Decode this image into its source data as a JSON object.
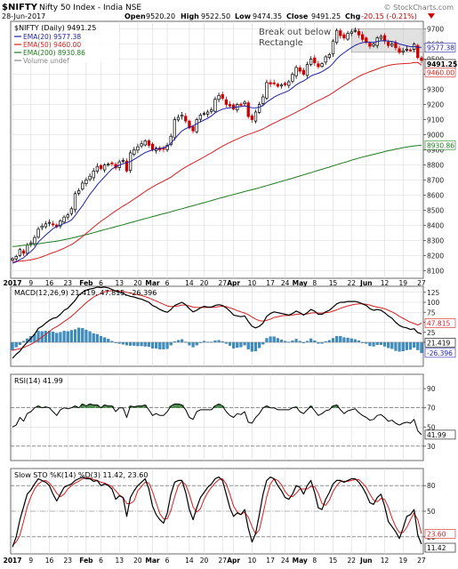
{
  "header": {
    "symbol": "$NIFTY",
    "name": "Nifty 50 Index - India  NSE",
    "date": "28-Jun-2017",
    "open_label": "Open",
    "open": "9520.20",
    "high_label": "High",
    "high": "9522.50",
    "low_label": "Low",
    "low": "9474.35",
    "close_label": "Close",
    "close": "9491.25",
    "chg_label": "Chg",
    "chg": "-20.15 (-0.21%)",
    "watermark": "© StockCharts.com"
  },
  "colors": {
    "price_up": "#000000",
    "price_down": "#cc0000",
    "ema20": "#1f1fa6",
    "ema50": "#d62020",
    "ema200": "#1f7a1f",
    "macd": "#000000",
    "signal": "#d62020",
    "histogram": "#3a8fc5",
    "rsi": "#000000",
    "rsi_fill": "#4a8a4a",
    "stoch_k": "#000000",
    "stoch_d": "#d62020",
    "grid": "#d9d9d9",
    "box": "#b5b5b5"
  },
  "chart_data": [
    {
      "type": "candlestick",
      "panel": "price",
      "title": "$NIFTY (Daily) 9491.25",
      "legend": [
        {
          "name": "EMA(20) 9577.38",
          "color": "#1f1fa6"
        },
        {
          "name": "EMA(50) 9460.00",
          "color": "#d62020"
        },
        {
          "name": "EMA(200) 8930.86",
          "color": "#1f7a1f"
        },
        {
          "name": "Volume undef",
          "color": "#888888"
        }
      ],
      "ylim": [
        8050,
        9750
      ],
      "yticks": [
        8100,
        8200,
        8300,
        8400,
        8500,
        8600,
        8700,
        8800,
        8900,
        9000,
        9100,
        9200,
        9300,
        9400,
        9500,
        9600,
        9700
      ],
      "grid": true,
      "value_tags": [
        {
          "text": "9577.38",
          "value": 9577.38,
          "style": "blue"
        },
        {
          "text": "9491.25",
          "value": 9491.25,
          "style": "bold"
        },
        {
          "text": "9460.00",
          "value": 9460.0,
          "style": "red"
        },
        {
          "text": "8930.86",
          "value": 8930.86,
          "style": "green"
        }
      ],
      "annotation": {
        "text_line1": "Break out below",
        "text_line2": "Rectangle"
      },
      "rectangle": {
        "y_low": 9545,
        "y_high": 9700,
        "date_start": "2017-06-02",
        "date_end": "2017-06-28"
      },
      "x_ticks": [
        "2017",
        "9",
        "16",
        "23",
        "Feb",
        "6",
        "13",
        "20",
        "Mar",
        "6",
        "14",
        "20",
        "27",
        "Apr",
        "10",
        "17",
        "24",
        "May",
        "8",
        "15",
        "22",
        "Jun",
        "12",
        "19",
        "27"
      ],
      "close": [
        8180,
        8195,
        8240,
        8215,
        8270,
        8285,
        8320,
        8375,
        8395,
        8410,
        8420,
        8405,
        8390,
        8430,
        8455,
        8470,
        8510,
        8610,
        8630,
        8680,
        8700,
        8725,
        8760,
        8790,
        8775,
        8800,
        8805,
        8810,
        8780,
        8820,
        8830,
        8760,
        8880,
        8900,
        8920,
        8940,
        8960,
        8930,
        8900,
        8910,
        8900,
        8905,
        8930,
        8990,
        9100,
        9115,
        9130,
        9090,
        9045,
        9025,
        9100,
        9130,
        9140,
        9150,
        9165,
        9235,
        9260,
        9240,
        9200,
        9190,
        9170,
        9200,
        9195,
        9215,
        9120,
        9100,
        9150,
        9200,
        9250,
        9345,
        9335,
        9340,
        9320,
        9330,
        9330,
        9350,
        9400,
        9445,
        9420,
        9400,
        9465,
        9500,
        9475,
        9450,
        9470,
        9515,
        9530,
        9620,
        9690,
        9655,
        9640,
        9670,
        9680,
        9690,
        9660,
        9630,
        9610,
        9585,
        9600,
        9640,
        9650,
        9620,
        9590,
        9600,
        9575,
        9545,
        9555,
        9565,
        9560,
        9600,
        9510,
        9491.25
      ],
      "ema20": [
        8150,
        8158,
        8174,
        8186,
        8208,
        8227,
        8252,
        8290,
        8313,
        8336,
        8357,
        8378,
        8393,
        8402,
        8413,
        8422,
        8436,
        8465,
        8499,
        8530,
        8568,
        8605,
        8636,
        8669,
        8696,
        8721,
        8748,
        8773,
        8788,
        8798,
        8808,
        8816,
        8822,
        8837,
        8851,
        8867,
        8881,
        8891,
        8899,
        8905,
        8909,
        8914,
        8923,
        8944,
        8972,
        9000,
        9025,
        9040,
        9050,
        9058,
        9072,
        9085,
        9097,
        9108,
        9125,
        9144,
        9158,
        9169,
        9175,
        9178,
        9181,
        9184,
        9186,
        9191,
        9184,
        9178,
        9177,
        9182,
        9194,
        9215,
        9232,
        9248,
        9261,
        9272,
        9281,
        9292,
        9310,
        9330,
        9345,
        9356,
        9371,
        9388,
        9399,
        9406,
        9417,
        9432,
        9448,
        9472,
        9501,
        9524,
        9542,
        9560,
        9576,
        9591,
        9602,
        9609,
        9614,
        9612,
        9611,
        9616,
        9621,
        9622,
        9619,
        9617,
        9611,
        9600,
        9594,
        9588,
        9582,
        9584,
        9578,
        9577.38
      ],
      "ema50": [
        8160,
        8161,
        8163,
        8165,
        8168,
        8172,
        8177,
        8184,
        8192,
        8201,
        8211,
        8220,
        8228,
        8238,
        8249,
        8261,
        8273,
        8289,
        8307,
        8326,
        8347,
        8367,
        8388,
        8408,
        8427,
        8444,
        8461,
        8479,
        8496,
        8512,
        8528,
        8541,
        8557,
        8574,
        8590,
        8607,
        8624,
        8640,
        8654,
        8668,
        8681,
        8693,
        8706,
        8719,
        8737,
        8754,
        8771,
        8786,
        8800,
        8813,
        8826,
        8839,
        8853,
        8867,
        8880,
        8895,
        8910,
        8924,
        8937,
        8949,
        8960,
        8971,
        8982,
        8993,
        9002,
        9010,
        9019,
        9028,
        9038,
        9052,
        9065,
        9077,
        9089,
        9101,
        9112,
        9124,
        9136,
        9149,
        9161,
        9173,
        9187,
        9201,
        9214,
        9226,
        9237,
        9250,
        9263,
        9278,
        9295,
        9311,
        9326,
        9342,
        9357,
        9372,
        9385,
        9397,
        9407,
        9417,
        9426,
        9435,
        9444,
        9452,
        9458,
        9463,
        9466,
        9468,
        9470,
        9471,
        9473,
        9477,
        9478,
        9460.0
      ],
      "ema200": [
        8260,
        8262,
        8265,
        8268,
        8270,
        8273,
        8276,
        8279,
        8282,
        8286,
        8289,
        8292,
        8296,
        8300,
        8305,
        8310,
        8315,
        8321,
        8327,
        8333,
        8339,
        8345,
        8352,
        8358,
        8365,
        8372,
        8378,
        8385,
        8391,
        8398,
        8404,
        8411,
        8418,
        8424,
        8431,
        8438,
        8445,
        8451,
        8458,
        8464,
        8471,
        8477,
        8483,
        8490,
        8497,
        8504,
        8510,
        8517,
        8524,
        8530,
        8537,
        8544,
        8550,
        8557,
        8564,
        8571,
        8578,
        8585,
        8591,
        8598,
        8604,
        8611,
        8617,
        8624,
        8630,
        8636,
        8642,
        8649,
        8656,
        8663,
        8670,
        8677,
        8684,
        8691,
        8698,
        8705,
        8712,
        8720,
        8727,
        8734,
        8742,
        8749,
        8757,
        8764,
        8771,
        8779,
        8786,
        8794,
        8801,
        8809,
        8816,
        8823,
        8831,
        8838,
        8845,
        8852,
        8858,
        8864,
        8870,
        8876,
        8882,
        8888,
        8894,
        8899,
        8904,
        8909,
        8914,
        8918,
        8922,
        8926,
        8928,
        8930.86
      ]
    },
    {
      "type": "line+bar",
      "panel": "macd",
      "title": "MACD(12,26,9) 21.419, 47.815, -26.396",
      "ylim": [
        -60,
        140
      ],
      "yticks": [
        0,
        25,
        50,
        75,
        100,
        125
      ],
      "value_tags": [
        {
          "text": "47.815",
          "value": 47.815,
          "style": "red"
        },
        {
          "text": "21.419",
          "value": 21.419,
          "style": "black"
        },
        {
          "text": "-26.396",
          "value": -26.396,
          "style": "blue"
        }
      ],
      "macd": [
        -40,
        -30,
        -22,
        -10,
        0,
        10,
        20,
        35,
        40,
        48,
        55,
        60,
        62,
        70,
        80,
        85,
        95,
        105,
        118,
        125,
        130,
        133,
        135,
        138,
        137,
        138,
        136,
        132,
        128,
        125,
        122,
        118,
        115,
        113,
        110,
        108,
        104,
        100,
        92,
        88,
        82,
        78,
        75,
        82,
        92,
        96,
        100,
        94,
        84,
        76,
        80,
        86,
        90,
        88,
        88,
        92,
        94,
        92,
        86,
        78,
        68,
        66,
        64,
        66,
        52,
        40,
        36,
        40,
        48,
        65,
        72,
        76,
        74,
        72,
        70,
        68,
        72,
        78,
        74,
        68,
        74,
        82,
        78,
        70,
        70,
        76,
        80,
        88,
        96,
        100,
        100,
        102,
        102,
        102,
        100,
        96,
        92,
        84,
        80,
        82,
        80,
        74,
        66,
        60,
        50,
        42,
        38,
        36,
        32,
        34,
        24,
        21.419
      ],
      "signal": [
        -20,
        -18,
        -16,
        -13,
        -9,
        -5,
        0,
        7,
        13,
        20,
        27,
        34,
        39,
        45,
        52,
        58,
        65,
        73,
        82,
        90,
        99,
        106,
        113,
        118,
        122,
        126,
        128,
        129,
        129,
        128,
        127,
        125,
        123,
        121,
        119,
        117,
        114,
        111,
        107,
        103,
        99,
        95,
        91,
        89,
        90,
        91,
        93,
        93,
        91,
        88,
        87,
        87,
        87,
        87,
        87,
        88,
        89,
        90,
        89,
        86,
        83,
        79,
        76,
        73,
        69,
        63,
        58,
        54,
        53,
        55,
        58,
        62,
        64,
        66,
        67,
        67,
        68,
        70,
        71,
        70,
        71,
        73,
        74,
        73,
        73,
        74,
        75,
        78,
        81,
        85,
        88,
        91,
        93,
        95,
        96,
        96,
        95,
        93,
        90,
        88,
        86,
        84,
        80,
        76,
        71,
        65,
        60,
        55,
        50,
        47,
        43,
        47.815
      ],
      "histogram": [
        -20,
        -12,
        -6,
        3,
        9,
        15,
        20,
        28,
        27,
        28,
        28,
        26,
        23,
        25,
        28,
        27,
        30,
        32,
        36,
        35,
        31,
        27,
        22,
        20,
        15,
        12,
        8,
        3,
        -1,
        -3,
        -5,
        -7,
        -8,
        -8,
        -9,
        -9,
        -10,
        -11,
        -15,
        -15,
        -17,
        -17,
        -16,
        -7,
        2,
        5,
        7,
        1,
        -7,
        -12,
        -7,
        -1,
        3,
        1,
        1,
        4,
        5,
        2,
        -3,
        -8,
        -15,
        -13,
        -12,
        -7,
        -17,
        -23,
        -22,
        -14,
        -5,
        10,
        14,
        14,
        10,
        6,
        3,
        1,
        4,
        8,
        3,
        -2,
        3,
        9,
        4,
        -3,
        -3,
        2,
        5,
        10,
        15,
        15,
        12,
        11,
        9,
        7,
        4,
        0,
        -3,
        -9,
        -10,
        -6,
        -6,
        -10,
        -14,
        -16,
        -21,
        -23,
        -22,
        -19,
        -18,
        -13,
        -19,
        -26.396
      ]
    },
    {
      "type": "line",
      "panel": "rsi",
      "title": "RSI(14) 41.99",
      "ylim": [
        15,
        105
      ],
      "yticks": [
        30,
        50,
        70,
        90
      ],
      "reference_lines": [
        30,
        70
      ],
      "value_tags": [
        {
          "text": "41.99",
          "value": 41.99,
          "style": "black"
        }
      ],
      "values": [
        50,
        52,
        60,
        56,
        64,
        66,
        70,
        72,
        70,
        71,
        70,
        66,
        62,
        68,
        70,
        69,
        70,
        72,
        70,
        74,
        72,
        74,
        73,
        73,
        70,
        73,
        72,
        72,
        66,
        70,
        70,
        60,
        72,
        71,
        72,
        72,
        73,
        68,
        62,
        64,
        62,
        62,
        66,
        72,
        74,
        74,
        73,
        68,
        60,
        58,
        66,
        68,
        68,
        68,
        68,
        72,
        74,
        72,
        66,
        62,
        60,
        64,
        63,
        66,
        55,
        54,
        60,
        64,
        70,
        72,
        70,
        70,
        68,
        68,
        68,
        68,
        70,
        71,
        66,
        64,
        68,
        72,
        67,
        62,
        64,
        67,
        68,
        72,
        73,
        68,
        64,
        67,
        68,
        69,
        65,
        62,
        60,
        57,
        58,
        62,
        63,
        60,
        56,
        57,
        54,
        52,
        54,
        55,
        54,
        58,
        46,
        41.99
      ]
    },
    {
      "type": "line",
      "panel": "stochastic",
      "title": "Slow STO %K(14) %D(3) 11.42, 23.60",
      "ylim": [
        0,
        100
      ],
      "yticks": [
        20,
        50,
        80
      ],
      "reference_lines": [
        20,
        80
      ],
      "value_tags": [
        {
          "text": "23.60",
          "value": 23.6,
          "style": "red"
        },
        {
          "text": "11.42",
          "value": 11.42,
          "style": "black"
        }
      ],
      "k": [
        8,
        20,
        40,
        55,
        70,
        75,
        82,
        88,
        86,
        84,
        80,
        70,
        62,
        70,
        78,
        80,
        82,
        86,
        88,
        90,
        88,
        88,
        85,
        86,
        80,
        82,
        80,
        76,
        64,
        68,
        66,
        44,
        66,
        74,
        80,
        84,
        88,
        76,
        56,
        46,
        40,
        36,
        48,
        70,
        84,
        86,
        86,
        72,
        52,
        40,
        54,
        66,
        72,
        78,
        82,
        88,
        90,
        86,
        70,
        54,
        44,
        48,
        46,
        52,
        30,
        14,
        24,
        46,
        70,
        86,
        90,
        88,
        80,
        74,
        66,
        64,
        70,
        80,
        78,
        70,
        80,
        86,
        72,
        54,
        52,
        64,
        72,
        82,
        86,
        86,
        84,
        86,
        88,
        88,
        84,
        78,
        70,
        60,
        58,
        66,
        70,
        56,
        38,
        32,
        26,
        18,
        30,
        44,
        46,
        52,
        22,
        11.42
      ],
      "d": [
        10,
        14,
        22,
        38,
        55,
        67,
        76,
        82,
        85,
        86,
        83,
        78,
        71,
        67,
        70,
        76,
        80,
        83,
        85,
        88,
        89,
        89,
        87,
        86,
        84,
        83,
        81,
        79,
        74,
        69,
        66,
        59,
        59,
        62,
        74,
        79,
        84,
        83,
        73,
        60,
        47,
        41,
        41,
        51,
        67,
        80,
        85,
        81,
        70,
        55,
        49,
        53,
        64,
        72,
        78,
        83,
        87,
        88,
        82,
        70,
        56,
        49,
        46,
        49,
        43,
        32,
        23,
        28,
        47,
        67,
        82,
        88,
        86,
        81,
        73,
        68,
        67,
        71,
        76,
        76,
        76,
        79,
        79,
        71,
        59,
        57,
        63,
        73,
        80,
        85,
        85,
        85,
        86,
        87,
        87,
        83,
        78,
        70,
        63,
        61,
        65,
        64,
        55,
        42,
        32,
        25,
        25,
        31,
        40,
        48,
        40,
        23.6
      ]
    }
  ]
}
